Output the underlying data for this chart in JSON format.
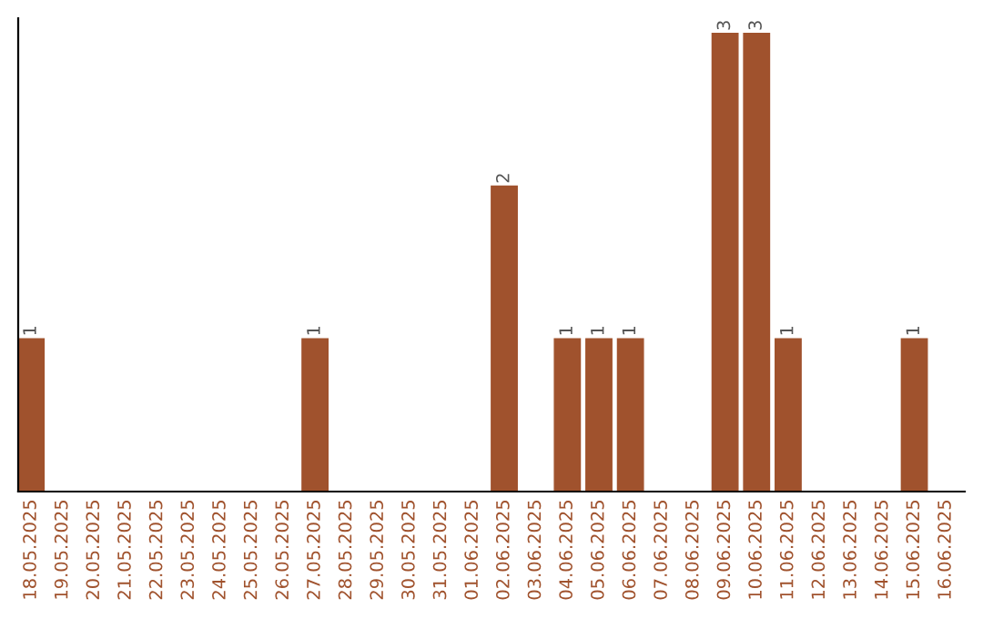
{
  "chart_data": {
    "type": "bar",
    "categories": [
      "18.05.2025",
      "19.05.2025",
      "20.05.2025",
      "21.05.2025",
      "22.05.2025",
      "23.05.2025",
      "24.05.2025",
      "25.05.2025",
      "26.05.2025",
      "27.05.2025",
      "28.05.2025",
      "29.05.2025",
      "30.05.2025",
      "31.05.2025",
      "01.06.2025",
      "02.06.2025",
      "03.06.2025",
      "04.06.2025",
      "05.06.2025",
      "06.06.2025",
      "07.06.2025",
      "08.06.2025",
      "09.06.2025",
      "10.06.2025",
      "11.06.2025",
      "12.06.2025",
      "13.06.2025",
      "14.06.2025",
      "15.06.2025",
      "16.06.2025"
    ],
    "values": [
      1,
      0,
      0,
      0,
      0,
      0,
      0,
      0,
      0,
      1,
      0,
      0,
      0,
      0,
      0,
      2,
      0,
      1,
      1,
      1,
      0,
      0,
      3,
      3,
      1,
      0,
      0,
      0,
      1,
      0
    ],
    "value_labels": [
      "1",
      null,
      null,
      null,
      null,
      null,
      null,
      null,
      null,
      "1",
      null,
      null,
      null,
      null,
      null,
      "2",
      null,
      "1",
      "1",
      "1",
      null,
      null,
      "3",
      "3",
      "1",
      null,
      null,
      null,
      "1",
      null
    ],
    "color": "#a0522d",
    "ylim": [
      0,
      3.1
    ],
    "tick_labels": "x",
    "grid": false,
    "legend": false
  }
}
